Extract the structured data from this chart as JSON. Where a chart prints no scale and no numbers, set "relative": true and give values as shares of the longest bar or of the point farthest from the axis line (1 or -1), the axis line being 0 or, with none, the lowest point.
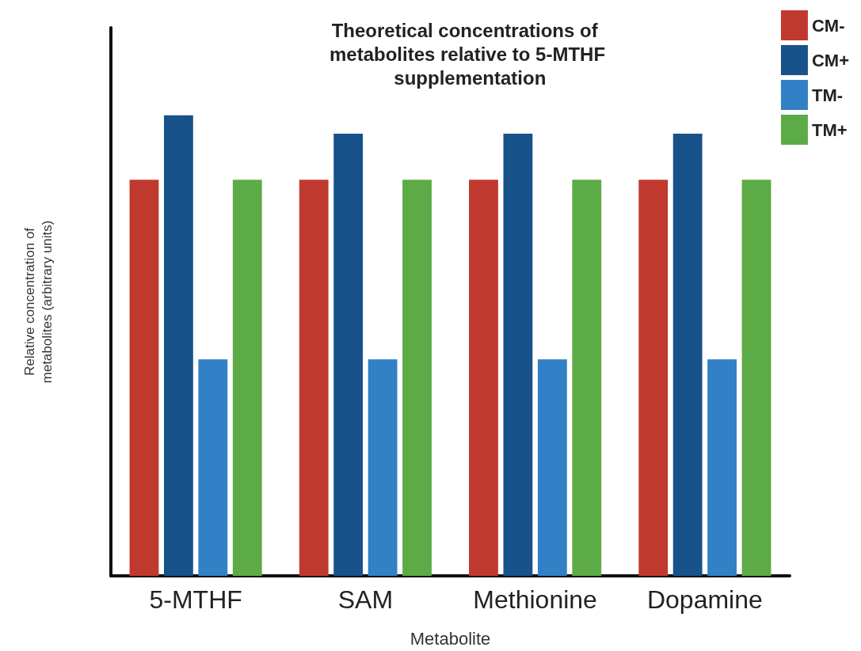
{
  "chart_data": {
    "type": "bar",
    "title": "Theoretical concentrations of metabolites relative to 5-MTHF supplementation",
    "xlabel": "Metabolite",
    "ylabel": "Relative concentration of metabolites (arbitrary units)",
    "categories": [
      "5-MTHF",
      "SAM",
      "Methionine",
      "Dopamine"
    ],
    "relative": true,
    "legend": "top right",
    "grid": false,
    "series": [
      {
        "name": "CM-",
        "color": "#c0392f",
        "values": [
          0.86,
          0.86,
          0.86,
          0.86
        ]
      },
      {
        "name": "CM+",
        "color": "#17528a",
        "values": [
          1,
          0.96,
          0.96,
          0.96
        ]
      },
      {
        "name": "TM-",
        "color": "#3280c6",
        "values": [
          0.47,
          0.47,
          0.47,
          0.47
        ]
      },
      {
        "name": "TM+",
        "color": "#5dab46",
        "values": [
          0.86,
          0.86,
          0.86,
          0.86
        ]
      }
    ]
  }
}
